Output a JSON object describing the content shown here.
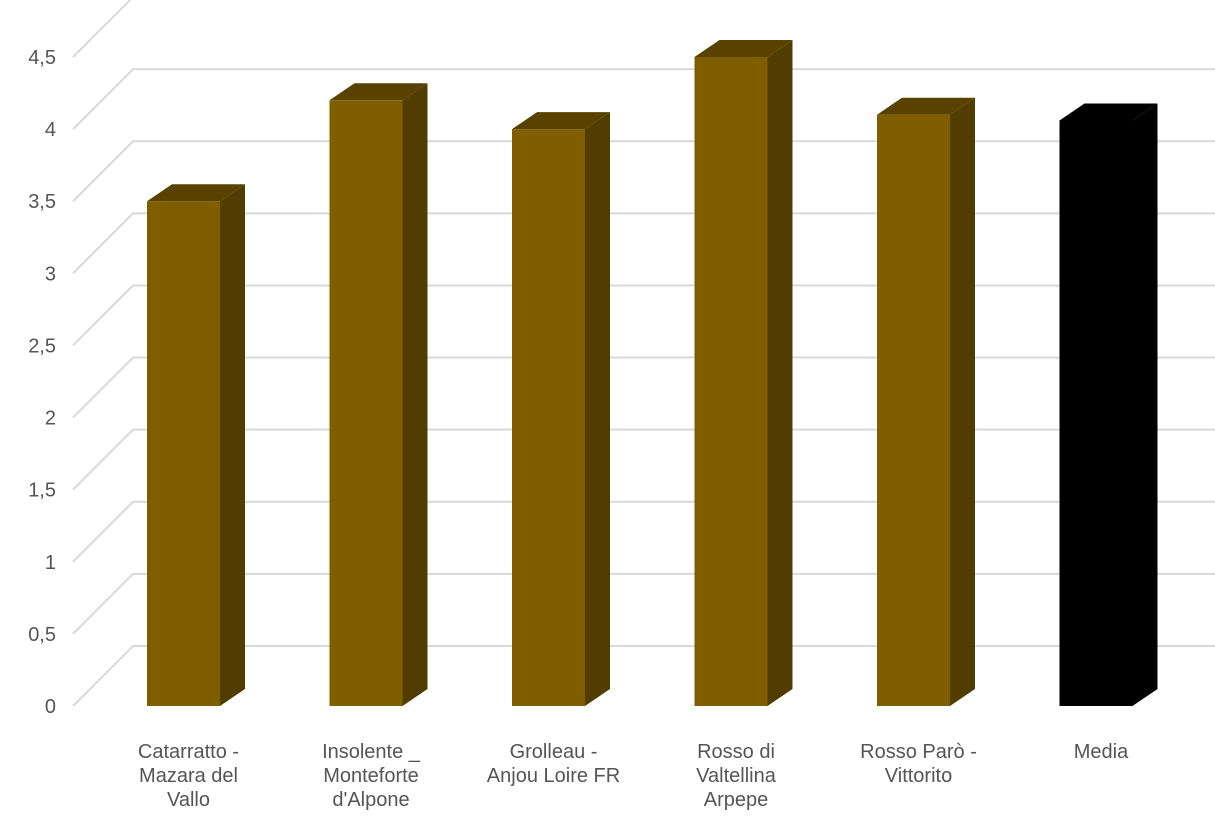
{
  "chart_data": {
    "type": "bar",
    "title": "",
    "xlabel": "",
    "ylabel": "",
    "ylim": [
      0,
      4.5
    ],
    "y_ticks": [
      "0",
      "0,5",
      "1",
      "1,5",
      "2",
      "2,5",
      "3",
      "3,5",
      "4",
      "4,5"
    ],
    "grid": true,
    "style": "3d-columns",
    "categories": [
      [
        "Catarratto -",
        "Mazara del",
        "Vallo"
      ],
      [
        "Insolente _",
        "Monteforte",
        "d'Alpone"
      ],
      [
        "Grolleau -",
        "Anjou Loire FR"
      ],
      [
        "Rosso di",
        "Valtellina",
        "Arpepe"
      ],
      [
        "Rosso Parò -",
        "Vittorito"
      ],
      [
        "Media"
      ]
    ],
    "values": [
      3.5,
      4.2,
      4.0,
      4.5,
      4.1,
      4.06
    ],
    "colors": {
      "bar_front": "#7F5E00",
      "bar_side": "#513D00",
      "bar_top": "#594200",
      "average_bar": "#000000",
      "gridline": "#D9D9D9",
      "tick_text": "#555555"
    }
  }
}
